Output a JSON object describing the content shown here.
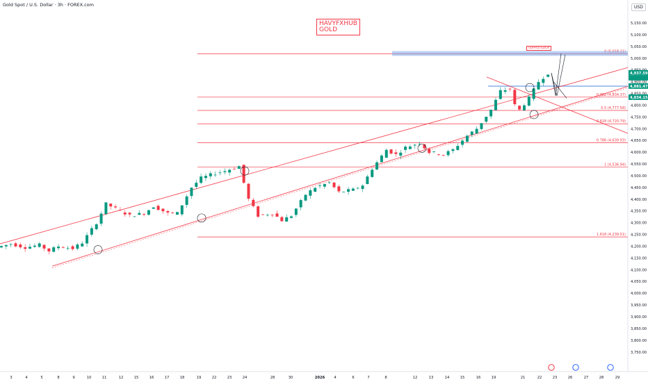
{
  "header": {
    "symbol_title": "Gold Spot / U.S. Dollar · 3h · FOREX.com"
  },
  "currency_button": "USD",
  "watermark": {
    "line1": "HAVYFXHUB",
    "line2": "GOLD"
  },
  "supply_label": "SUPPLY/SDOP",
  "price_labels": {
    "current": "4,937.59",
    "countdown": "18:43",
    "level_blue": "4,881.47",
    "level_green": "4,834.15"
  },
  "fib_levels": [
    {
      "label": "0 (5,018.21)",
      "price": 5018.21
    },
    {
      "label": "0.382 (4,834.37)",
      "price": 4834.37
    },
    {
      "label": "0.5 (4,777.58)",
      "price": 4777.58
    },
    {
      "label": "0.618 (4,720.79)",
      "price": 4720.79
    },
    {
      "label": "0.786 (4,639.93)",
      "price": 4639.93
    },
    {
      "label": "1 (4,536.94)",
      "price": 4536.94
    },
    {
      "label": "1.618 (4,239.51)",
      "price": 4239.51
    }
  ],
  "event_icons": [
    "flag-us-icon",
    "flag-us-icon",
    "earnings-icon"
  ],
  "colors": {
    "up": "#089981",
    "down": "#f23645",
    "fib": "#f23645",
    "zone": "#7da7e8",
    "blue_label": "#089981"
  },
  "chart_data": {
    "type": "candlestick",
    "title": "Gold Spot / U.S. Dollar · 3h · FOREX.com",
    "ylim": [
      3725,
      5175
    ],
    "y_ticks": [
      "5,150.00",
      "5,100.00",
      "5,050.00",
      "5,000.00",
      "4,950.00",
      "4,900.00",
      "4,850.00",
      "4,800.00",
      "4,750.00",
      "4,700.00",
      "4,650.00",
      "4,600.00",
      "4,550.00",
      "4,500.00",
      "4,450.00",
      "4,400.00",
      "4,350.00",
      "4,300.00",
      "4,250.00",
      "4,200.00",
      "4,150.00",
      "4,100.00",
      "4,050.00",
      "4,000.00",
      "3,950.00",
      "3,900.00",
      "3,850.00",
      "3,800.00",
      "3,750.00"
    ],
    "x_ticks": [
      "3",
      "4",
      "5",
      "8",
      "9",
      "10",
      "11",
      "12",
      "15",
      "16",
      "17",
      "18",
      "19",
      "22",
      "23",
      "24",
      "28",
      "30",
      "2026",
      "4",
      "6",
      "7",
      "8",
      "12",
      "13",
      "14",
      "15",
      "16",
      "19",
      "21",
      "22",
      "23",
      "26",
      "27",
      "28",
      "29"
    ],
    "price_path": [
      [
        0,
        4195
      ],
      [
        3,
        4210
      ],
      [
        6,
        4195
      ],
      [
        9,
        4205
      ],
      [
        11,
        4180
      ],
      [
        13,
        4200
      ],
      [
        16,
        4190
      ],
      [
        18,
        4215
      ],
      [
        21,
        4300
      ],
      [
        23,
        4380
      ],
      [
        26,
        4350
      ],
      [
        28,
        4330
      ],
      [
        31,
        4340
      ],
      [
        33,
        4370
      ],
      [
        36,
        4340
      ],
      [
        38,
        4340
      ],
      [
        41,
        4450
      ],
      [
        43,
        4490
      ],
      [
        46,
        4510
      ],
      [
        48,
        4520
      ],
      [
        51,
        4540
      ],
      [
        53,
        4400
      ],
      [
        55,
        4330
      ],
      [
        58,
        4340
      ],
      [
        60,
        4310
      ],
      [
        62,
        4330
      ],
      [
        65,
        4420
      ],
      [
        67,
        4450
      ],
      [
        70,
        4470
      ],
      [
        72,
        4430
      ],
      [
        75,
        4440
      ],
      [
        77,
        4460
      ],
      [
        79,
        4530
      ],
      [
        82,
        4610
      ],
      [
        84,
        4590
      ],
      [
        86,
        4620
      ],
      [
        89,
        4640
      ],
      [
        91,
        4600
      ],
      [
        94,
        4590
      ],
      [
        96,
        4610
      ],
      [
        99,
        4670
      ],
      [
        101,
        4700
      ],
      [
        104,
        4780
      ],
      [
        106,
        4860
      ],
      [
        108,
        4870
      ],
      [
        109,
        4800
      ],
      [
        110,
        4780
      ],
      [
        112,
        4830
      ],
      [
        114,
        4900
      ],
      [
        116,
        4937
      ]
    ],
    "projection": "up toward 5,018.21 supply zone"
  }
}
